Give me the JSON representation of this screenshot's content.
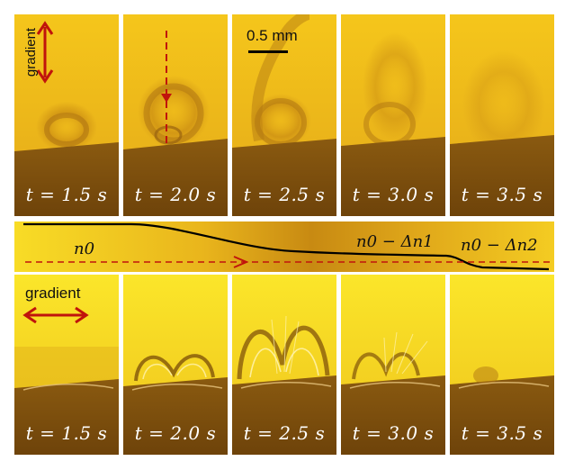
{
  "top_row": {
    "gradient_label": "gradient",
    "scale_label": "0.5 mm",
    "frames": [
      {
        "t": "t = 1.5 s"
      },
      {
        "t": "t = 2.0 s"
      },
      {
        "t": "t = 2.5 s"
      },
      {
        "t": "t = 3.0 s"
      },
      {
        "t": "t = 3.5 s"
      }
    ]
  },
  "middle_strip": {
    "label_n0": "n0",
    "label_n1": "n0 − Δn1",
    "label_n2": "n0 − Δn2"
  },
  "bottom_row": {
    "gradient_label": "gradient",
    "frames": [
      {
        "t": "t = 1.5 s"
      },
      {
        "t": "t = 2.0 s"
      },
      {
        "t": "t = 2.5 s"
      },
      {
        "t": "t = 3.0 s"
      },
      {
        "t": "t = 3.5 s"
      }
    ]
  },
  "colors": {
    "bright": "#f7d21a",
    "dark": "#7a4c08",
    "arrow": "#c0140c"
  }
}
